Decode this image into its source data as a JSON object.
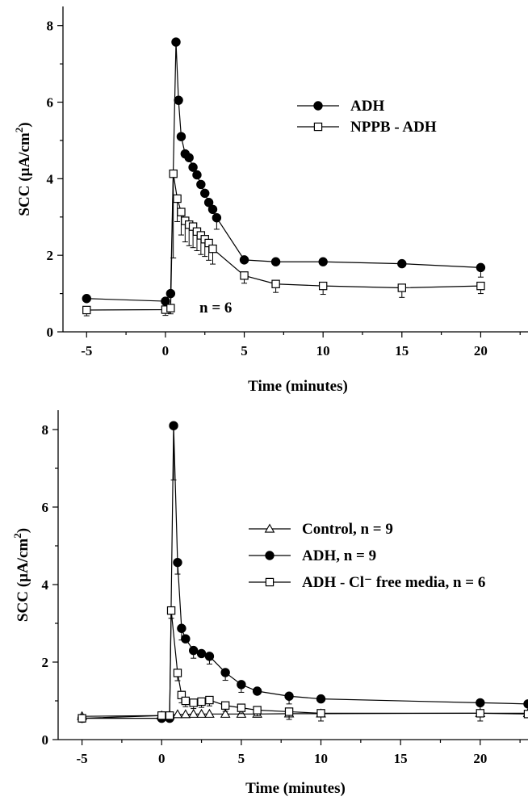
{
  "chart_data": [
    {
      "type": "line",
      "title": "",
      "xlabel": "Time (minutes)",
      "ylabel_main": "SCC (µA/cm",
      "ylabel_sup": "2",
      "ylabel_close": ")",
      "xlim": [
        -6.5,
        23
      ],
      "ylim": [
        0,
        8.5
      ],
      "xticks": [
        -5,
        0,
        5,
        10,
        15,
        20
      ],
      "yticks": [
        0,
        2,
        4,
        6,
        8
      ],
      "legend_position": "top-right",
      "annotation": "n = 6",
      "series": [
        {
          "name": "ADH",
          "marker": "filled-circle",
          "points": [
            {
              "x": -5,
              "y": 0.87,
              "err": 0
            },
            {
              "x": 0,
              "y": 0.8,
              "err": 0
            },
            {
              "x": 0.33,
              "y": 1.0,
              "err": 0
            },
            {
              "x": 0.67,
              "y": 7.57,
              "err": 0
            },
            {
              "x": 0.83,
              "y": 6.05,
              "err": 0
            },
            {
              "x": 1.0,
              "y": 5.1,
              "err": 0
            },
            {
              "x": 1.25,
              "y": 4.65,
              "err": 0
            },
            {
              "x": 1.5,
              "y": 4.55,
              "err": 0
            },
            {
              "x": 1.75,
              "y": 4.3,
              "err": 0
            },
            {
              "x": 2.0,
              "y": 4.1,
              "err": 0
            },
            {
              "x": 2.25,
              "y": 3.85,
              "err": 0
            },
            {
              "x": 2.5,
              "y": 3.62,
              "err": 0
            },
            {
              "x": 2.75,
              "y": 3.38,
              "err": 0
            },
            {
              "x": 3.0,
              "y": 3.2,
              "err": 0
            },
            {
              "x": 3.25,
              "y": 2.98,
              "err": 0.3
            },
            {
              "x": 5,
              "y": 1.88,
              "err": 0
            },
            {
              "x": 7,
              "y": 1.83,
              "err": 0
            },
            {
              "x": 10,
              "y": 1.83,
              "err": 0
            },
            {
              "x": 15,
              "y": 1.78,
              "err": 0
            },
            {
              "x": 20,
              "y": 1.68,
              "err": 0.25
            }
          ]
        },
        {
          "name": "NPPB - ADH",
          "marker": "open-square",
          "points": [
            {
              "x": -5,
              "y": 0.57,
              "err": 0.15
            },
            {
              "x": 0,
              "y": 0.58,
              "err": 0.15
            },
            {
              "x": 0.33,
              "y": 0.62,
              "err": 0.15
            },
            {
              "x": 0.5,
              "y": 4.13,
              "err": 2.2
            },
            {
              "x": 0.75,
              "y": 3.48,
              "err": 0.6
            },
            {
              "x": 1.0,
              "y": 3.13,
              "err": 0.6
            },
            {
              "x": 1.25,
              "y": 2.9,
              "err": 0.55
            },
            {
              "x": 1.5,
              "y": 2.8,
              "err": 0.55
            },
            {
              "x": 1.75,
              "y": 2.75,
              "err": 0.55
            },
            {
              "x": 2.0,
              "y": 2.62,
              "err": 0.5
            },
            {
              "x": 2.25,
              "y": 2.52,
              "err": 0.5
            },
            {
              "x": 2.5,
              "y": 2.42,
              "err": 0.45
            },
            {
              "x": 2.75,
              "y": 2.32,
              "err": 0.45
            },
            {
              "x": 3.0,
              "y": 2.17,
              "err": 0.4
            },
            {
              "x": 5,
              "y": 1.47,
              "err": 0.2
            },
            {
              "x": 7,
              "y": 1.25,
              "err": 0.22
            },
            {
              "x": 10,
              "y": 1.2,
              "err": 0.22
            },
            {
              "x": 15,
              "y": 1.15,
              "err": 0.25
            },
            {
              "x": 20,
              "y": 1.2,
              "err": 0.2
            }
          ]
        }
      ]
    },
    {
      "type": "line",
      "title": "",
      "xlabel": "Time (minutes)",
      "ylabel_main": "SCC (µA/cm",
      "ylabel_sup": "2",
      "ylabel_close": ")",
      "xlim": [
        -6.5,
        23
      ],
      "ylim": [
        0,
        8.5
      ],
      "xticks": [
        -5,
        0,
        5,
        10,
        15,
        20
      ],
      "yticks": [
        0,
        2,
        4,
        6,
        8
      ],
      "legend_position": "right",
      "series": [
        {
          "name": "Control, n = 9",
          "marker": "open-triangle",
          "points": [
            {
              "x": -5,
              "y": 0.6,
              "err": 0.1
            },
            {
              "x": 0,
              "y": 0.62,
              "err": 0.05
            },
            {
              "x": 0.5,
              "y": 0.63,
              "err": 0.05
            },
            {
              "x": 1.0,
              "y": 0.65,
              "err": 0.05
            },
            {
              "x": 1.5,
              "y": 0.65,
              "err": 0.05
            },
            {
              "x": 2.0,
              "y": 0.66,
              "err": 0.05
            },
            {
              "x": 2.5,
              "y": 0.66,
              "err": 0.05
            },
            {
              "x": 3.0,
              "y": 0.66,
              "err": 0.05
            },
            {
              "x": 4,
              "y": 0.66,
              "err": 0.05
            },
            {
              "x": 5,
              "y": 0.66,
              "err": 0.05
            },
            {
              "x": 6,
              "y": 0.66,
              "err": 0.05
            },
            {
              "x": 8,
              "y": 0.67,
              "err": 0.05
            },
            {
              "x": 10,
              "y": 0.67,
              "err": 0.05
            },
            {
              "x": 20,
              "y": 0.68,
              "err": 0.05
            },
            {
              "x": 23,
              "y": 0.68,
              "err": 0
            }
          ]
        },
        {
          "name": "ADH, n = 9",
          "marker": "filled-circle",
          "points": [
            {
              "x": -5,
              "y": 0.55,
              "err": 0
            },
            {
              "x": 0,
              "y": 0.55,
              "err": 0
            },
            {
              "x": 0.5,
              "y": 0.55,
              "err": 0
            },
            {
              "x": 0.75,
              "y": 8.1,
              "err": 1.4
            },
            {
              "x": 1.0,
              "y": 4.57,
              "err": 0.3
            },
            {
              "x": 1.25,
              "y": 2.87,
              "err": 0.3
            },
            {
              "x": 1.5,
              "y": 2.6,
              "err": 0
            },
            {
              "x": 2.0,
              "y": 2.3,
              "err": 0.2
            },
            {
              "x": 2.5,
              "y": 2.22,
              "err": 0
            },
            {
              "x": 3.0,
              "y": 2.15,
              "err": 0.2
            },
            {
              "x": 4,
              "y": 1.73,
              "err": 0.2
            },
            {
              "x": 5,
              "y": 1.42,
              "err": 0.2
            },
            {
              "x": 6,
              "y": 1.25,
              "err": 0
            },
            {
              "x": 8,
              "y": 1.12,
              "err": 0.2
            },
            {
              "x": 10,
              "y": 1.05,
              "err": 0
            },
            {
              "x": 20,
              "y": 0.95,
              "err": 0.2
            },
            {
              "x": 23,
              "y": 0.92,
              "err": 0
            }
          ]
        },
        {
          "name": "ADH - Cl⁻ free media, n = 6",
          "marker": "open-square",
          "points": [
            {
              "x": -5,
              "y": 0.55,
              "err": 0.1
            },
            {
              "x": 0,
              "y": 0.62,
              "err": 0.05
            },
            {
              "x": 0.5,
              "y": 0.62,
              "err": 0.05
            },
            {
              "x": 0.6,
              "y": 3.33,
              "err": 0.2
            },
            {
              "x": 1.0,
              "y": 1.72,
              "err": 0.2
            },
            {
              "x": 1.25,
              "y": 1.15,
              "err": 0.2
            },
            {
              "x": 1.5,
              "y": 1.0,
              "err": 0.15
            },
            {
              "x": 2.0,
              "y": 0.95,
              "err": 0.15
            },
            {
              "x": 2.5,
              "y": 0.98,
              "err": 0.15
            },
            {
              "x": 3.0,
              "y": 1.02,
              "err": 0.15
            },
            {
              "x": 4,
              "y": 0.88,
              "err": 0.15
            },
            {
              "x": 5,
              "y": 0.82,
              "err": 0.15
            },
            {
              "x": 6,
              "y": 0.76,
              "err": 0.15
            },
            {
              "x": 8,
              "y": 0.72,
              "err": 0.2
            },
            {
              "x": 10,
              "y": 0.68,
              "err": 0.2
            },
            {
              "x": 20,
              "y": 0.68,
              "err": 0.2
            },
            {
              "x": 23,
              "y": 0.66,
              "err": 0
            }
          ]
        }
      ]
    }
  ]
}
